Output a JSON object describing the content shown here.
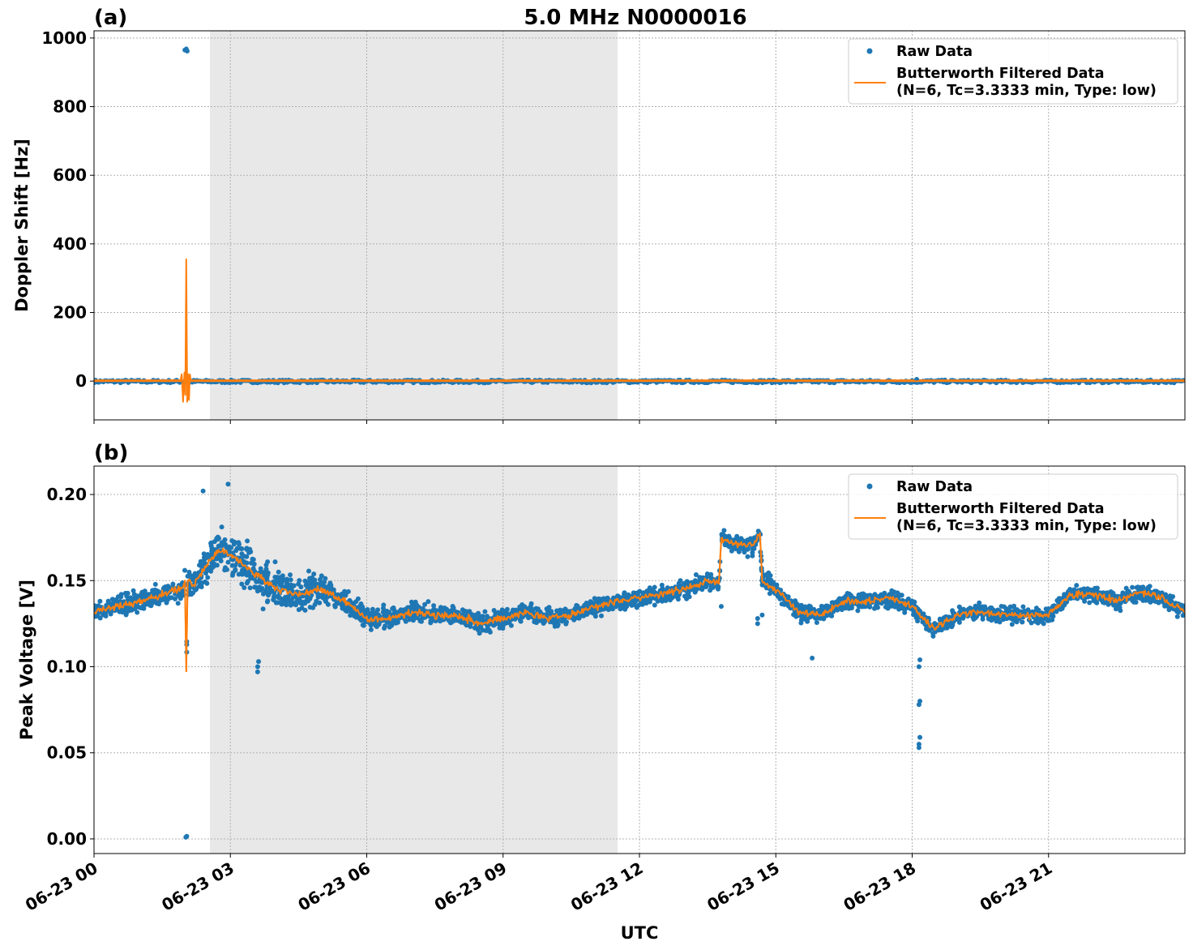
{
  "chart_data": [
    {
      "type": "scatter+line",
      "panel_label": "(a)",
      "title": "5.0 MHz N0000016",
      "xlabel": "",
      "ylabel": "Doppler Shift [Hz]",
      "xlim_hours": [
        0,
        24
      ],
      "ylim": [
        -113,
        1021
      ],
      "yticks": [
        0,
        200,
        400,
        600,
        800,
        1000
      ],
      "yticklabels": [
        "0",
        "200",
        "400",
        "600",
        "800",
        "1000"
      ],
      "shaded_region_hours": [
        2.55,
        11.52
      ],
      "grid": true,
      "legend_position": "top-right",
      "series": [
        {
          "name": "Raw Data",
          "color": "#1f77b4",
          "baseline_range": [
            -5,
            3
          ],
          "outliers": [
            [
              2.0,
              965
            ],
            [
              2.03,
              968
            ],
            [
              2.05,
              962
            ],
            [
              18.1,
              5
            ]
          ]
        },
        {
          "name": "Butterworth Filtered Data",
          "color": "#ff7f0e",
          "x": [
            0,
            1.9,
            1.93,
            1.96,
            1.99,
            2.01,
            2.03,
            2.05,
            2.07,
            2.09,
            2.11,
            2.13,
            24
          ],
          "y": [
            0,
            0,
            20,
            -60,
            25,
            -40,
            355,
            -60,
            20,
            -55,
            20,
            0,
            0
          ]
        }
      ]
    },
    {
      "type": "scatter+line",
      "panel_label": "(b)",
      "xlabel": "UTC",
      "ylabel": "Peak Voltage [V]",
      "xlim_hours": [
        0,
        24
      ],
      "ylim": [
        -0.0085,
        0.2165
      ],
      "yticks": [
        0,
        0.05,
        0.1,
        0.15,
        0.2
      ],
      "yticklabels": [
        "0.00",
        "0.05",
        "0.10",
        "0.15",
        "0.20"
      ],
      "xticks_hours": [
        0,
        3,
        6,
        9,
        12,
        15,
        18,
        21
      ],
      "xticklabels": [
        "06-23 00",
        "06-23 03",
        "06-23 06",
        "06-23 09",
        "06-23 12",
        "06-23 15",
        "06-23 18",
        "06-23 21"
      ],
      "shaded_region_hours": [
        2.55,
        11.52
      ],
      "grid": true,
      "legend_position": "top-right",
      "series": [
        {
          "name": "Raw Data",
          "color": "#1f77b4",
          "spread_hours": [
            0,
            2,
            2.5,
            3.5,
            6,
            13.8,
            14.7,
            18,
            24
          ],
          "spread": [
            0.006,
            0.009,
            0.014,
            0.018,
            0.007,
            0.006,
            0.007,
            0.006,
            0.006
          ],
          "outliers": [
            [
              2.02,
              0.001
            ],
            [
              2.04,
              0.0015
            ],
            [
              3.6,
              0.1
            ],
            [
              3.6,
              0.097
            ],
            [
              3.62,
              0.103
            ],
            [
              2.95,
              0.206
            ],
            [
              2.4,
              0.202
            ],
            [
              14.6,
              0.125
            ],
            [
              14.6,
              0.128
            ],
            [
              15.8,
              0.105
            ],
            [
              18.15,
              0.053
            ],
            [
              18.15,
              0.055
            ],
            [
              18.17,
              0.059
            ],
            [
              18.15,
              0.078
            ],
            [
              18.17,
              0.08
            ],
            [
              18.15,
              0.1
            ],
            [
              18.17,
              0.104
            ],
            [
              13.8,
              0.135
            ],
            [
              14.7,
              0.13
            ]
          ]
        },
        {
          "name": "Butterworth Filtered Data",
          "color": "#ff7f0e",
          "x": [
            0,
            0.5,
            1,
            1.5,
            1.95,
            2.0,
            2.03,
            2.06,
            2.2,
            2.5,
            2.75,
            3,
            3.5,
            4,
            4.5,
            5,
            5.5,
            6,
            6.5,
            7,
            7.5,
            8,
            8.5,
            9,
            9.5,
            10,
            10.5,
            11,
            11.5,
            12,
            12.5,
            13,
            13.5,
            13.75,
            13.8,
            14,
            14.5,
            14.65,
            14.7,
            15,
            15.5,
            16,
            16.5,
            17,
            17.5,
            18,
            18.5,
            19,
            19.5,
            20,
            20.5,
            21,
            21.5,
            22,
            22.5,
            23,
            23.5,
            24
          ],
          "y": [
            0.132,
            0.135,
            0.138,
            0.142,
            0.145,
            0.15,
            0.097,
            0.15,
            0.148,
            0.16,
            0.168,
            0.165,
            0.155,
            0.145,
            0.142,
            0.145,
            0.138,
            0.128,
            0.128,
            0.132,
            0.13,
            0.13,
            0.125,
            0.128,
            0.132,
            0.128,
            0.13,
            0.135,
            0.138,
            0.14,
            0.142,
            0.145,
            0.15,
            0.148,
            0.175,
            0.172,
            0.17,
            0.178,
            0.15,
            0.145,
            0.132,
            0.13,
            0.138,
            0.138,
            0.14,
            0.135,
            0.122,
            0.13,
            0.132,
            0.13,
            0.13,
            0.13,
            0.142,
            0.142,
            0.138,
            0.143,
            0.14,
            0.132
          ]
        }
      ]
    }
  ],
  "legend": {
    "raw": "Raw Data",
    "filtered_line1": "Butterworth Filtered Data",
    "filtered_line2": "(N=6, Tc=3.3333 min, Type: low)"
  }
}
